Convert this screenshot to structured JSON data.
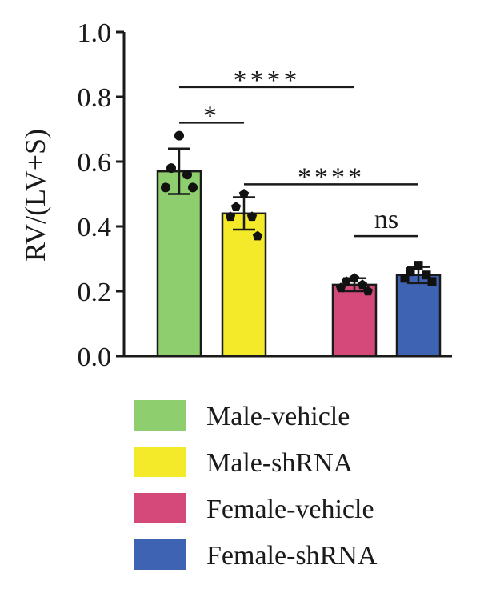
{
  "chart_data": {
    "type": "bar",
    "title": "",
    "xlabel": "",
    "ylabel": "RV/(LV+S)",
    "ylim": [
      0,
      1.0
    ],
    "yticks": [
      "0.0",
      "0.2",
      "0.4",
      "0.6",
      "0.8",
      "1.0"
    ],
    "grid": false,
    "legend_position": "bottom",
    "categories": [
      "Male-vehicle",
      "Male-shRNA",
      "Female-vehicle",
      "Female-shRNA"
    ],
    "values": [
      0.57,
      0.44,
      0.22,
      0.25
    ],
    "errors": [
      0.07,
      0.05,
      0.02,
      0.025
    ],
    "colors": [
      "#8fce6f",
      "#f5ea2a",
      "#d4487a",
      "#3f63b3"
    ],
    "marker_shapes": [
      "circle",
      "pentagon",
      "pentagon",
      "square"
    ],
    "points": [
      [
        0.68,
        0.58,
        0.56,
        0.52,
        0.52
      ],
      [
        0.5,
        0.46,
        0.43,
        0.43,
        0.37
      ],
      [
        0.24,
        0.23,
        0.22,
        0.21,
        0.2
      ],
      [
        0.28,
        0.26,
        0.25,
        0.24,
        0.23
      ]
    ],
    "significance": [
      {
        "from": 0,
        "to": 1,
        "label": "*",
        "y": 0.72
      },
      {
        "from": 0,
        "to": 2,
        "label": "****",
        "y": 0.83
      },
      {
        "from": 1,
        "to": 3,
        "label": "****",
        "y": 0.53
      },
      {
        "from": 2,
        "to": 3,
        "label": "ns",
        "y": 0.37
      }
    ]
  }
}
